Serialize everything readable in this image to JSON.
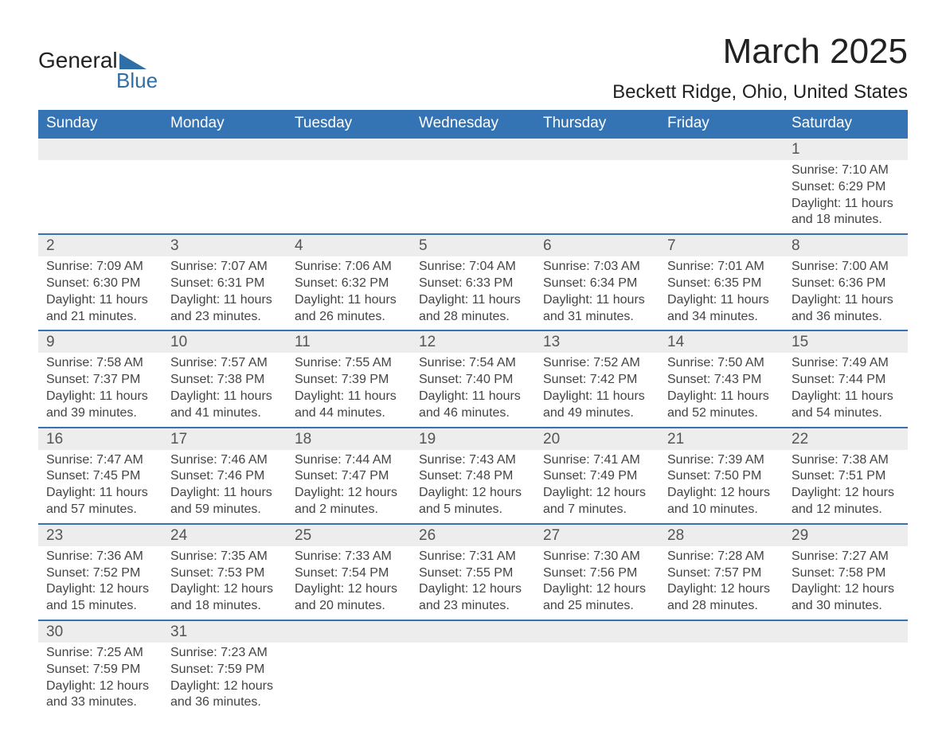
{
  "logo": {
    "text1": "General",
    "text2": "Blue"
  },
  "title": "March 2025",
  "location": "Beckett Ridge, Ohio, United States",
  "colors": {
    "header_bg": "#3474b4",
    "header_text": "#ffffff",
    "daynum_bg": "#ededed",
    "row_border": "#3474b4",
    "body_text": "#444444",
    "background": "#ffffff"
  },
  "daysOfWeek": [
    "Sunday",
    "Monday",
    "Tuesday",
    "Wednesday",
    "Thursday",
    "Friday",
    "Saturday"
  ],
  "weeks": [
    [
      null,
      null,
      null,
      null,
      null,
      null,
      {
        "n": "1",
        "sunrise": "Sunrise: 7:10 AM",
        "sunset": "Sunset: 6:29 PM",
        "day1": "Daylight: 11 hours",
        "day2": "and 18 minutes."
      }
    ],
    [
      {
        "n": "2",
        "sunrise": "Sunrise: 7:09 AM",
        "sunset": "Sunset: 6:30 PM",
        "day1": "Daylight: 11 hours",
        "day2": "and 21 minutes."
      },
      {
        "n": "3",
        "sunrise": "Sunrise: 7:07 AM",
        "sunset": "Sunset: 6:31 PM",
        "day1": "Daylight: 11 hours",
        "day2": "and 23 minutes."
      },
      {
        "n": "4",
        "sunrise": "Sunrise: 7:06 AM",
        "sunset": "Sunset: 6:32 PM",
        "day1": "Daylight: 11 hours",
        "day2": "and 26 minutes."
      },
      {
        "n": "5",
        "sunrise": "Sunrise: 7:04 AM",
        "sunset": "Sunset: 6:33 PM",
        "day1": "Daylight: 11 hours",
        "day2": "and 28 minutes."
      },
      {
        "n": "6",
        "sunrise": "Sunrise: 7:03 AM",
        "sunset": "Sunset: 6:34 PM",
        "day1": "Daylight: 11 hours",
        "day2": "and 31 minutes."
      },
      {
        "n": "7",
        "sunrise": "Sunrise: 7:01 AM",
        "sunset": "Sunset: 6:35 PM",
        "day1": "Daylight: 11 hours",
        "day2": "and 34 minutes."
      },
      {
        "n": "8",
        "sunrise": "Sunrise: 7:00 AM",
        "sunset": "Sunset: 6:36 PM",
        "day1": "Daylight: 11 hours",
        "day2": "and 36 minutes."
      }
    ],
    [
      {
        "n": "9",
        "sunrise": "Sunrise: 7:58 AM",
        "sunset": "Sunset: 7:37 PM",
        "day1": "Daylight: 11 hours",
        "day2": "and 39 minutes."
      },
      {
        "n": "10",
        "sunrise": "Sunrise: 7:57 AM",
        "sunset": "Sunset: 7:38 PM",
        "day1": "Daylight: 11 hours",
        "day2": "and 41 minutes."
      },
      {
        "n": "11",
        "sunrise": "Sunrise: 7:55 AM",
        "sunset": "Sunset: 7:39 PM",
        "day1": "Daylight: 11 hours",
        "day2": "and 44 minutes."
      },
      {
        "n": "12",
        "sunrise": "Sunrise: 7:54 AM",
        "sunset": "Sunset: 7:40 PM",
        "day1": "Daylight: 11 hours",
        "day2": "and 46 minutes."
      },
      {
        "n": "13",
        "sunrise": "Sunrise: 7:52 AM",
        "sunset": "Sunset: 7:42 PM",
        "day1": "Daylight: 11 hours",
        "day2": "and 49 minutes."
      },
      {
        "n": "14",
        "sunrise": "Sunrise: 7:50 AM",
        "sunset": "Sunset: 7:43 PM",
        "day1": "Daylight: 11 hours",
        "day2": "and 52 minutes."
      },
      {
        "n": "15",
        "sunrise": "Sunrise: 7:49 AM",
        "sunset": "Sunset: 7:44 PM",
        "day1": "Daylight: 11 hours",
        "day2": "and 54 minutes."
      }
    ],
    [
      {
        "n": "16",
        "sunrise": "Sunrise: 7:47 AM",
        "sunset": "Sunset: 7:45 PM",
        "day1": "Daylight: 11 hours",
        "day2": "and 57 minutes."
      },
      {
        "n": "17",
        "sunrise": "Sunrise: 7:46 AM",
        "sunset": "Sunset: 7:46 PM",
        "day1": "Daylight: 11 hours",
        "day2": "and 59 minutes."
      },
      {
        "n": "18",
        "sunrise": "Sunrise: 7:44 AM",
        "sunset": "Sunset: 7:47 PM",
        "day1": "Daylight: 12 hours",
        "day2": "and 2 minutes."
      },
      {
        "n": "19",
        "sunrise": "Sunrise: 7:43 AM",
        "sunset": "Sunset: 7:48 PM",
        "day1": "Daylight: 12 hours",
        "day2": "and 5 minutes."
      },
      {
        "n": "20",
        "sunrise": "Sunrise: 7:41 AM",
        "sunset": "Sunset: 7:49 PM",
        "day1": "Daylight: 12 hours",
        "day2": "and 7 minutes."
      },
      {
        "n": "21",
        "sunrise": "Sunrise: 7:39 AM",
        "sunset": "Sunset: 7:50 PM",
        "day1": "Daylight: 12 hours",
        "day2": "and 10 minutes."
      },
      {
        "n": "22",
        "sunrise": "Sunrise: 7:38 AM",
        "sunset": "Sunset: 7:51 PM",
        "day1": "Daylight: 12 hours",
        "day2": "and 12 minutes."
      }
    ],
    [
      {
        "n": "23",
        "sunrise": "Sunrise: 7:36 AM",
        "sunset": "Sunset: 7:52 PM",
        "day1": "Daylight: 12 hours",
        "day2": "and 15 minutes."
      },
      {
        "n": "24",
        "sunrise": "Sunrise: 7:35 AM",
        "sunset": "Sunset: 7:53 PM",
        "day1": "Daylight: 12 hours",
        "day2": "and 18 minutes."
      },
      {
        "n": "25",
        "sunrise": "Sunrise: 7:33 AM",
        "sunset": "Sunset: 7:54 PM",
        "day1": "Daylight: 12 hours",
        "day2": "and 20 minutes."
      },
      {
        "n": "26",
        "sunrise": "Sunrise: 7:31 AM",
        "sunset": "Sunset: 7:55 PM",
        "day1": "Daylight: 12 hours",
        "day2": "and 23 minutes."
      },
      {
        "n": "27",
        "sunrise": "Sunrise: 7:30 AM",
        "sunset": "Sunset: 7:56 PM",
        "day1": "Daylight: 12 hours",
        "day2": "and 25 minutes."
      },
      {
        "n": "28",
        "sunrise": "Sunrise: 7:28 AM",
        "sunset": "Sunset: 7:57 PM",
        "day1": "Daylight: 12 hours",
        "day2": "and 28 minutes."
      },
      {
        "n": "29",
        "sunrise": "Sunrise: 7:27 AM",
        "sunset": "Sunset: 7:58 PM",
        "day1": "Daylight: 12 hours",
        "day2": "and 30 minutes."
      }
    ],
    [
      {
        "n": "30",
        "sunrise": "Sunrise: 7:25 AM",
        "sunset": "Sunset: 7:59 PM",
        "day1": "Daylight: 12 hours",
        "day2": "and 33 minutes."
      },
      {
        "n": "31",
        "sunrise": "Sunrise: 7:23 AM",
        "sunset": "Sunset: 7:59 PM",
        "day1": "Daylight: 12 hours",
        "day2": "and 36 minutes."
      },
      null,
      null,
      null,
      null,
      null
    ]
  ]
}
